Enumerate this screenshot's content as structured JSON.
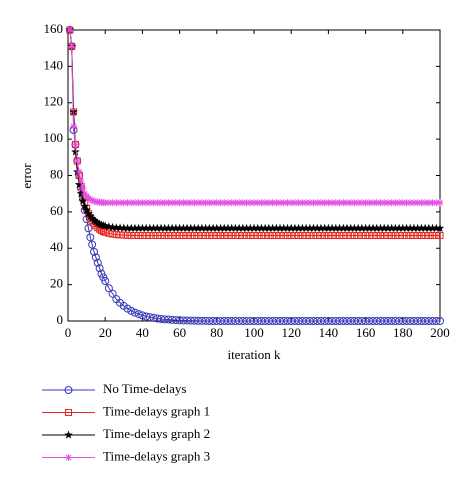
{
  "chart_data": {
    "type": "line",
    "xlabel": "iteration k",
    "ylabel": "error",
    "xlim": [
      0,
      200
    ],
    "ylim": [
      0,
      160
    ],
    "xticks": [
      0,
      20,
      40,
      60,
      80,
      100,
      120,
      140,
      160,
      180,
      200
    ],
    "yticks": [
      0,
      20,
      40,
      60,
      80,
      100,
      120,
      140,
      160
    ],
    "legend": "bottom",
    "x": [
      1,
      2,
      3,
      4,
      5,
      6,
      7,
      8,
      9,
      10,
      11,
      12,
      13,
      14,
      15,
      16,
      17,
      18,
      19,
      20,
      22,
      24,
      26,
      28,
      30,
      32,
      34,
      36,
      38,
      40,
      42,
      44,
      46,
      48,
      50,
      52,
      54,
      56,
      58,
      60,
      62,
      64,
      66,
      68,
      70,
      72,
      74,
      76,
      78,
      80,
      82,
      84,
      86,
      88,
      90,
      92,
      94,
      96,
      98,
      100,
      102,
      104,
      106,
      108,
      110,
      112,
      114,
      116,
      118,
      120,
      122,
      124,
      126,
      128,
      130,
      132,
      134,
      136,
      138,
      140,
      142,
      144,
      146,
      148,
      150,
      152,
      154,
      156,
      158,
      160,
      162,
      164,
      166,
      168,
      170,
      172,
      174,
      176,
      178,
      180,
      182,
      184,
      186,
      188,
      190,
      192,
      194,
      196,
      198,
      200
    ],
    "series": [
      {
        "name": "No Time-delays",
        "color": "#3a3ab8",
        "marker": "circle",
        "values": [
          160,
          151,
          105,
          97,
          88,
          80,
          73,
          67,
          61,
          56,
          51,
          46,
          42,
          38,
          35,
          32,
          29,
          26,
          24,
          22,
          18,
          15,
          12,
          10,
          8.3,
          6.8,
          5.6,
          4.6,
          3.8,
          3.1,
          2.5,
          2.1,
          1.7,
          1.4,
          1.1,
          0.9,
          0.8,
          0.6,
          0.5,
          0.4,
          0.3,
          0.3,
          0.2,
          0.2,
          0.1,
          0.1,
          0.1,
          0,
          0,
          0,
          0,
          0,
          0,
          0,
          0,
          0,
          0,
          0,
          0,
          0,
          0,
          0,
          0,
          0,
          0,
          0,
          0,
          0,
          0,
          0,
          0,
          0,
          0,
          0,
          0,
          0,
          0,
          0,
          0,
          0,
          0,
          0,
          0,
          0,
          0,
          0,
          0,
          0,
          0,
          0,
          0,
          0,
          0,
          0,
          0,
          0,
          0,
          0,
          0,
          0,
          0,
          0,
          0,
          0,
          0,
          0,
          0,
          0,
          0,
          0
        ]
      },
      {
        "name": "Time-delays graph 1",
        "color": "#e8281e",
        "marker": "square",
        "values": [
          160,
          151,
          115,
          97,
          88,
          80,
          74,
          69,
          65,
          62,
          59,
          57,
          55,
          53.5,
          52.3,
          51.3,
          50.5,
          49.8,
          49.2,
          48.8,
          48.2,
          47.8,
          47.5,
          47.3,
          47.2,
          47.1,
          47,
          47,
          47,
          47,
          47,
          47,
          47,
          47,
          47,
          47,
          47,
          47,
          47,
          47,
          47,
          47,
          47,
          47,
          47,
          47,
          47,
          47,
          47,
          47,
          47,
          47,
          47,
          47,
          47,
          47,
          47,
          47,
          47,
          47,
          47,
          47,
          47,
          47,
          47,
          47,
          47,
          47,
          47,
          47,
          47,
          47,
          47,
          47,
          47,
          47,
          47,
          47,
          47,
          47,
          47,
          47,
          47,
          47,
          47,
          47,
          47,
          47,
          47,
          47,
          47,
          47,
          47,
          47,
          47,
          47,
          47,
          47,
          47,
          47,
          47,
          47,
          47,
          47,
          47,
          47,
          47,
          47,
          47,
          47
        ]
      },
      {
        "name": "Time-delays graph 2",
        "color": "#000000",
        "marker": "star",
        "values": [
          160,
          151,
          115,
          93,
          82,
          75,
          70,
          66,
          63,
          61,
          59,
          57.5,
          56.3,
          55.3,
          54.5,
          53.8,
          53.3,
          52.8,
          52.5,
          52.2,
          51.8,
          51.5,
          51.3,
          51.2,
          51.1,
          51,
          51,
          51,
          51,
          51,
          51,
          51,
          51,
          51,
          51,
          51,
          51,
          51,
          51,
          51,
          51,
          51,
          51,
          51,
          51,
          51,
          51,
          51,
          51,
          51,
          51,
          51,
          51,
          51,
          51,
          51,
          51,
          51,
          51,
          51,
          51,
          51,
          51,
          51,
          51,
          51,
          51,
          51,
          51,
          51,
          51,
          51,
          51,
          51,
          51,
          51,
          51,
          51,
          51,
          51,
          51,
          51,
          51,
          51,
          51,
          51,
          51,
          51,
          51,
          51,
          51,
          51,
          51,
          51,
          51,
          51,
          51,
          51,
          51,
          51,
          51,
          51,
          51,
          51,
          51,
          51,
          51,
          51,
          51,
          51
        ]
      },
      {
        "name": "Time-delays graph 3",
        "color": "#e64ce6",
        "marker": "asterisk",
        "values": [
          160,
          151,
          107,
          97,
          88,
          82,
          77,
          73,
          70,
          68.5,
          67.5,
          66.8,
          66.3,
          65.9,
          65.6,
          65.4,
          65.3,
          65.2,
          65.1,
          65,
          65,
          65,
          65,
          65,
          65,
          65,
          65,
          65,
          65,
          65,
          65,
          65,
          65,
          65,
          65,
          65,
          65,
          65,
          65,
          65,
          65,
          65,
          65,
          65,
          65,
          65,
          65,
          65,
          65,
          65,
          65,
          65,
          65,
          65,
          65,
          65,
          65,
          65,
          65,
          65,
          65,
          65,
          65,
          65,
          65,
          65,
          65,
          65,
          65,
          65,
          65,
          65,
          65,
          65,
          65,
          65,
          65,
          65,
          65,
          65,
          65,
          65,
          65,
          65,
          65,
          65,
          65,
          65,
          65,
          65,
          65,
          65,
          65,
          65,
          65,
          65,
          65,
          65,
          65,
          65,
          65,
          65,
          65,
          65,
          65,
          65,
          65,
          65,
          65,
          65
        ]
      }
    ]
  }
}
